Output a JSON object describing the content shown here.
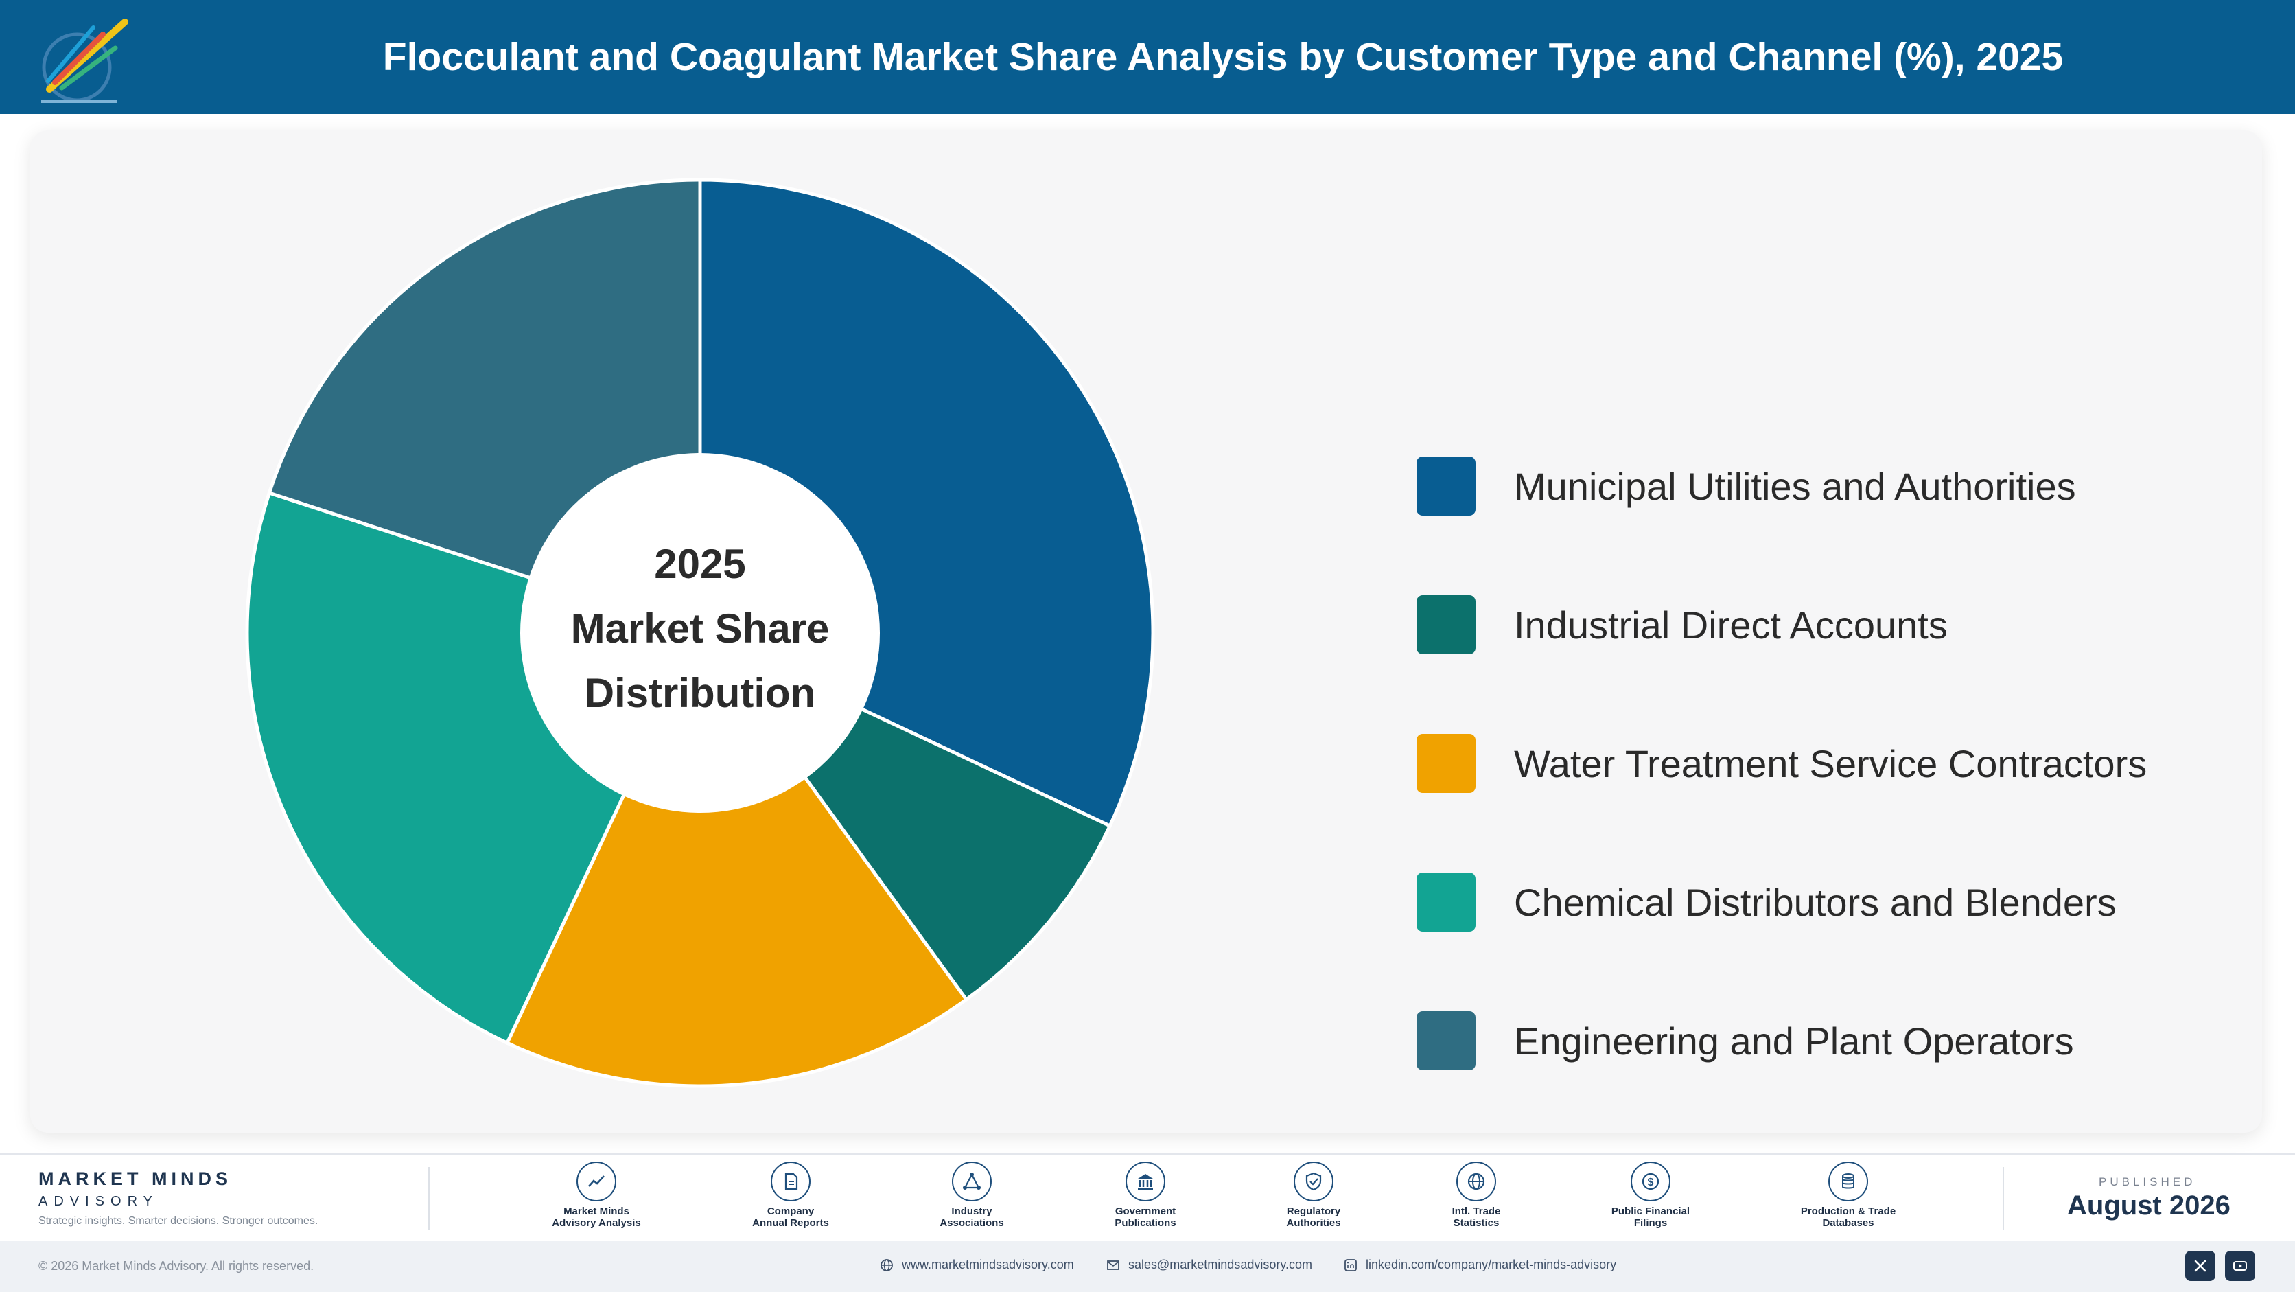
{
  "header": {
    "title": "Flocculant and Coagulant Market Share Analysis by Customer Type and Channel (%), 2025",
    "logo_icon": "market-minds-logo-icon"
  },
  "chart_data": {
    "type": "pie",
    "title": "Flocculant and Coagulant Market Share Analysis by Customer Type and Channel (%), 2025",
    "center_label": [
      "2025",
      "Market Share",
      "Distribution"
    ],
    "legend_position": "right",
    "categories": [
      "Municipal Utilities and Authorities",
      "Industrial Direct Accounts",
      "Water Treatment Service Contractors",
      "Chemical Distributors and Blenders",
      "Engineering and Plant Operators"
    ],
    "values": [
      32,
      8,
      17,
      23,
      20
    ],
    "colors": [
      "#085d92",
      "#0c716c",
      "#f0a200",
      "#12a493",
      "#2f6d82"
    ]
  },
  "footer": {
    "brand_name": "MARKET MINDS",
    "brand_sub": "ADVISORY",
    "brand_tagline": "Strategic insights. Smarter decisions. Stronger outcomes.",
    "sources": [
      {
        "line1": "Market Minds",
        "line2": "Advisory Analysis",
        "icon": "trend-line-icon"
      },
      {
        "line1": "Company",
        "line2": "Annual Reports",
        "icon": "document-icon"
      },
      {
        "line1": "Industry",
        "line2": "Associations",
        "icon": "network-icon"
      },
      {
        "line1": "Government",
        "line2": "Publications",
        "icon": "government-building-icon"
      },
      {
        "line1": "Regulatory",
        "line2": "Authorities",
        "icon": "shield-check-icon"
      },
      {
        "line1": "Intl. Trade",
        "line2": "Statistics",
        "icon": "globe-icon"
      },
      {
        "line1": "Public Financial",
        "line2": "Filings",
        "icon": "dollar-coin-icon"
      },
      {
        "line1": "Production & Trade",
        "line2": "Databases",
        "icon": "database-icon"
      }
    ],
    "published_label": "PUBLISHED",
    "published_date": "August 2026"
  },
  "bottombar": {
    "copyright": "© 2026 Market Minds Advisory. All rights reserved.",
    "website": "www.marketmindsadvisory.com",
    "email": "sales@marketmindsadvisory.com",
    "linkedin": "linkedin.com/company/market-minds-advisory",
    "social_icons": [
      "x-icon",
      "youtube-icon"
    ]
  }
}
